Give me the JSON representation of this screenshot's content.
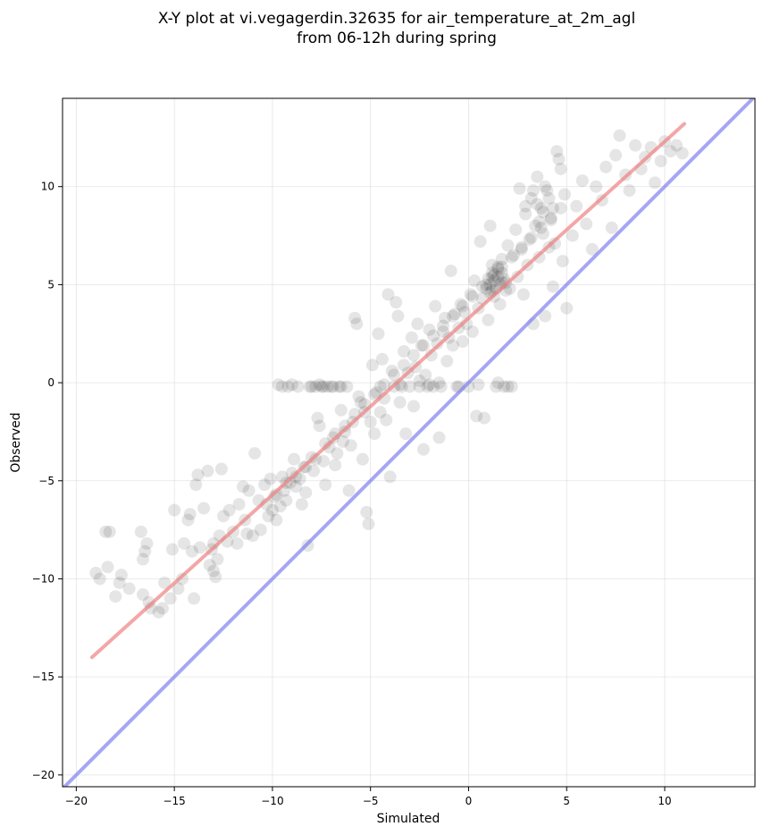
{
  "chart_data": {
    "type": "scatter",
    "title": [
      "X-Y plot at vi.vegagerdin.32635 for air_temperature_at_2m_agl",
      "from 06-12h during spring"
    ],
    "xlabel": "Simulated",
    "ylabel": "Observed",
    "xlim": [
      -20.7,
      14.6
    ],
    "ylim": [
      -20.6,
      14.5
    ],
    "xticks": [
      -20,
      -15,
      -10,
      -5,
      0,
      5,
      10
    ],
    "yticks": [
      -20,
      -15,
      -10,
      -5,
      0,
      5,
      10
    ],
    "xtick_labels": [
      "−20",
      "−15",
      "−10",
      "−5",
      "0",
      "5",
      "10"
    ],
    "ytick_labels": [
      "−20",
      "−15",
      "−10",
      "−5",
      "0",
      "5",
      "10"
    ],
    "grid": true,
    "marker_color": "#000000",
    "marker_alpha": 0.1,
    "series": [
      {
        "type": "scatter",
        "points": [
          [
            -19.0,
            -9.7
          ],
          [
            -18.8,
            -10.0
          ],
          [
            -18.3,
            -7.6
          ],
          [
            -18.5,
            -7.6
          ],
          [
            -18.4,
            -9.4
          ],
          [
            -18.0,
            -10.9
          ],
          [
            -17.8,
            -10.2
          ],
          [
            -17.7,
            -9.8
          ],
          [
            -17.3,
            -10.5
          ],
          [
            -16.7,
            -7.6
          ],
          [
            -16.6,
            -9.0
          ],
          [
            -16.5,
            -8.6
          ],
          [
            -16.4,
            -8.2
          ],
          [
            -16.6,
            -10.8
          ],
          [
            -16.2,
            -11.5
          ],
          [
            -16.3,
            -11.2
          ],
          [
            -15.8,
            -11.7
          ],
          [
            -15.6,
            -11.5
          ],
          [
            -15.5,
            -10.2
          ],
          [
            -15.2,
            -11.0
          ],
          [
            -15.0,
            -6.5
          ],
          [
            -15.1,
            -8.5
          ],
          [
            -14.8,
            -10.5
          ],
          [
            -14.6,
            -10.0
          ],
          [
            -14.5,
            -8.2
          ],
          [
            -14.3,
            -7.0
          ],
          [
            -14.2,
            -6.7
          ],
          [
            -14.1,
            -8.6
          ],
          [
            -14.0,
            -11.0
          ],
          [
            -13.9,
            -5.2
          ],
          [
            -13.8,
            -4.7
          ],
          [
            -13.7,
            -8.4
          ],
          [
            -13.5,
            -6.4
          ],
          [
            -13.3,
            -4.5
          ],
          [
            -13.2,
            -9.3
          ],
          [
            -13.1,
            -8.5
          ],
          [
            -13.0,
            -8.2
          ],
          [
            -13.0,
            -9.6
          ],
          [
            -12.9,
            -9.9
          ],
          [
            -12.8,
            -9.0
          ],
          [
            -12.7,
            -7.8
          ],
          [
            -12.6,
            -4.4
          ],
          [
            -12.5,
            -6.8
          ],
          [
            -12.3,
            -8.1
          ],
          [
            -12.2,
            -6.5
          ],
          [
            -12.0,
            -7.6
          ],
          [
            -11.8,
            -8.2
          ],
          [
            -11.7,
            -6.2
          ],
          [
            -11.5,
            -5.3
          ],
          [
            -11.4,
            -7.0
          ],
          [
            -11.2,
            -5.5
          ],
          [
            -11.0,
            -7.8
          ],
          [
            -10.9,
            -3.6
          ],
          [
            -10.7,
            -6.0
          ],
          [
            -10.6,
            -7.5
          ],
          [
            -10.4,
            -5.2
          ],
          [
            -10.2,
            -6.8
          ],
          [
            -10.1,
            -4.9
          ],
          [
            -10.0,
            -6.5
          ],
          [
            -9.9,
            -5.8
          ],
          [
            -9.8,
            -7.0
          ],
          [
            -9.7,
            -0.1
          ],
          [
            -9.6,
            -6.3
          ],
          [
            -9.5,
            -4.8
          ],
          [
            -9.4,
            -5.5
          ],
          [
            -9.3,
            -6.0
          ],
          [
            -9.2,
            -0.2
          ],
          [
            -9.1,
            -5.1
          ],
          [
            -9.0,
            -4.6
          ],
          [
            -8.9,
            -3.9
          ],
          [
            -8.8,
            -5.3
          ],
          [
            -8.7,
            -0.2
          ],
          [
            -8.6,
            -4.9
          ],
          [
            -8.5,
            -6.2
          ],
          [
            -8.4,
            -4.3
          ],
          [
            -8.3,
            -5.6
          ],
          [
            -8.2,
            -8.3
          ],
          [
            -8.1,
            -0.2
          ],
          [
            -8.0,
            -3.8
          ],
          [
            -7.9,
            -4.5
          ],
          [
            -7.8,
            -0.2
          ],
          [
            -7.7,
            -1.8
          ],
          [
            -7.6,
            -2.2
          ],
          [
            -7.5,
            -0.2
          ],
          [
            -7.4,
            -4.0
          ],
          [
            -7.3,
            -5.2
          ],
          [
            -7.2,
            -0.2
          ],
          [
            -7.1,
            -3.3
          ],
          [
            -7.0,
            -0.2
          ],
          [
            -6.9,
            -2.8
          ],
          [
            -6.8,
            -4.2
          ],
          [
            -6.7,
            -3.6
          ],
          [
            -6.6,
            -0.2
          ],
          [
            -6.5,
            -1.4
          ],
          [
            -6.4,
            -3.0
          ],
          [
            -6.3,
            -2.5
          ],
          [
            -6.2,
            -0.2
          ],
          [
            -6.1,
            -5.5
          ],
          [
            -6.0,
            -3.2
          ],
          [
            -5.9,
            -2.0
          ],
          [
            -5.8,
            3.3
          ],
          [
            -5.7,
            3.0
          ],
          [
            -5.6,
            -0.7
          ],
          [
            -5.5,
            -1.0
          ],
          [
            -5.4,
            -3.9
          ],
          [
            -5.3,
            -1.5
          ],
          [
            -5.2,
            -6.6
          ],
          [
            -5.1,
            -7.2
          ],
          [
            -5.0,
            -2.0
          ],
          [
            -4.9,
            0.9
          ],
          [
            -4.8,
            -2.6
          ],
          [
            -4.7,
            -0.5
          ],
          [
            -4.6,
            2.5
          ],
          [
            -4.5,
            -1.5
          ],
          [
            -4.4,
            1.2
          ],
          [
            -4.3,
            -0.8
          ],
          [
            -4.2,
            -1.9
          ],
          [
            -4.1,
            4.5
          ],
          [
            -4.0,
            -4.8
          ],
          [
            -3.9,
            0.6
          ],
          [
            -3.8,
            -0.2
          ],
          [
            -3.7,
            4.1
          ],
          [
            -3.6,
            3.4
          ],
          [
            -3.5,
            -1.0
          ],
          [
            -3.4,
            -0.2
          ],
          [
            -3.3,
            1.6
          ],
          [
            -3.2,
            -2.6
          ],
          [
            -3.1,
            0.5
          ],
          [
            -3.0,
            -0.2
          ],
          [
            -2.9,
            2.3
          ],
          [
            -2.8,
            -1.2
          ],
          [
            -2.7,
            0.8
          ],
          [
            -2.6,
            3.0
          ],
          [
            -2.5,
            -0.2
          ],
          [
            -2.4,
            1.9
          ],
          [
            -2.3,
            -3.4
          ],
          [
            -2.2,
            0.4
          ],
          [
            -2.1,
            -0.2
          ],
          [
            -2.0,
            2.7
          ],
          [
            -1.9,
            1.4
          ],
          [
            -1.8,
            -0.2
          ],
          [
            -1.7,
            3.9
          ],
          [
            -1.6,
            2.0
          ],
          [
            -1.5,
            -2.8
          ],
          [
            -1.4,
            -0.2
          ],
          [
            -1.3,
            2.6
          ],
          [
            -1.2,
            3.3
          ],
          [
            -1.1,
            1.1
          ],
          [
            -1.0,
            2.3
          ],
          [
            -0.9,
            5.7
          ],
          [
            -0.8,
            1.9
          ],
          [
            -0.7,
            3.5
          ],
          [
            -0.6,
            -0.2
          ],
          [
            -0.5,
            2.8
          ],
          [
            -0.4,
            4.0
          ],
          [
            -0.3,
            2.1
          ],
          [
            -0.2,
            3.6
          ],
          [
            -0.1,
            3.0
          ],
          [
            0.0,
            -0.2
          ],
          [
            0.1,
            4.5
          ],
          [
            0.2,
            2.6
          ],
          [
            0.3,
            5.2
          ],
          [
            0.4,
            -1.7
          ],
          [
            0.5,
            3.8
          ],
          [
            0.6,
            7.2
          ],
          [
            0.7,
            4.3
          ],
          [
            0.8,
            -1.8
          ],
          [
            0.9,
            5.0
          ],
          [
            1.0,
            3.2
          ],
          [
            1.1,
            8.0
          ],
          [
            1.2,
            4.7
          ],
          [
            1.3,
            5.5
          ],
          [
            1.4,
            -0.2
          ],
          [
            1.5,
            5.9
          ],
          [
            1.6,
            4.0
          ],
          [
            1.7,
            6.3
          ],
          [
            1.8,
            -0.2
          ],
          [
            1.9,
            5.1
          ],
          [
            2.0,
            7.0
          ],
          [
            2.1,
            4.8
          ],
          [
            2.2,
            -0.2
          ],
          [
            2.3,
            6.5
          ],
          [
            2.4,
            7.8
          ],
          [
            2.5,
            5.4
          ],
          [
            2.6,
            9.9
          ],
          [
            2.7,
            6.8
          ],
          [
            2.8,
            4.5
          ],
          [
            2.9,
            8.6
          ],
          [
            3.0,
            6.0
          ],
          [
            3.1,
            7.3
          ],
          [
            3.2,
            9.4
          ],
          [
            3.3,
            3.0
          ],
          [
            3.4,
            8.0
          ],
          [
            3.5,
            10.5
          ],
          [
            3.6,
            6.4
          ],
          [
            3.7,
            8.9
          ],
          [
            3.8,
            7.6
          ],
          [
            3.9,
            3.4
          ],
          [
            4.0,
            9.8
          ],
          [
            4.1,
            6.9
          ],
          [
            4.2,
            8.3
          ],
          [
            4.3,
            4.9
          ],
          [
            4.4,
            7.1
          ],
          [
            4.5,
            11.8
          ],
          [
            4.6,
            11.4
          ],
          [
            4.7,
            10.9
          ],
          [
            4.8,
            6.2
          ],
          [
            4.9,
            9.6
          ],
          [
            5.0,
            3.8
          ],
          [
            5.3,
            7.5
          ],
          [
            5.5,
            9.0
          ],
          [
            5.8,
            10.3
          ],
          [
            6.0,
            8.1
          ],
          [
            6.3,
            6.8
          ],
          [
            6.5,
            10.0
          ],
          [
            6.8,
            9.3
          ],
          [
            7.0,
            11.0
          ],
          [
            7.3,
            7.9
          ],
          [
            7.5,
            11.6
          ],
          [
            7.7,
            12.6
          ],
          [
            8.0,
            10.6
          ],
          [
            8.2,
            9.8
          ],
          [
            8.5,
            12.1
          ],
          [
            8.8,
            10.9
          ],
          [
            9.0,
            11.5
          ],
          [
            9.3,
            12.0
          ],
          [
            9.5,
            10.2
          ],
          [
            9.8,
            11.3
          ],
          [
            10.0,
            12.3
          ],
          [
            10.3,
            11.8
          ],
          [
            10.6,
            12.1
          ],
          [
            10.9,
            11.7
          ],
          [
            -11.3,
            -7.7
          ],
          [
            -10.3,
            -6.2
          ],
          [
            -9.8,
            -5.7
          ],
          [
            -9.3,
            -5.1
          ],
          [
            -8.8,
            -4.8
          ],
          [
            -8.3,
            -4.3
          ],
          [
            -7.8,
            -3.9
          ],
          [
            -7.3,
            -3.1
          ],
          [
            -6.8,
            -2.6
          ],
          [
            -6.3,
            -2.2
          ],
          [
            -5.8,
            -1.6
          ],
          [
            -5.3,
            -1.1
          ],
          [
            -4.8,
            -0.6
          ],
          [
            -4.3,
            -0.1
          ],
          [
            -3.8,
            0.4
          ],
          [
            -3.3,
            0.9
          ],
          [
            -2.8,
            1.4
          ],
          [
            -2.3,
            1.9
          ],
          [
            -1.8,
            2.4
          ],
          [
            -1.3,
            2.9
          ],
          [
            -0.8,
            3.4
          ],
          [
            -0.3,
            3.9
          ],
          [
            0.2,
            4.4
          ],
          [
            0.7,
            4.9
          ],
          [
            1.2,
            5.4
          ],
          [
            1.7,
            5.9
          ],
          [
            2.2,
            6.4
          ],
          [
            2.7,
            6.9
          ],
          [
            3.2,
            7.4
          ],
          [
            3.7,
            7.9
          ],
          [
            4.2,
            8.4
          ],
          [
            4.7,
            8.9
          ],
          [
            0.9,
            4.8
          ],
          [
            1.1,
            5.0
          ],
          [
            1.3,
            5.2
          ],
          [
            1.5,
            5.4
          ],
          [
            1.7,
            5.6
          ],
          [
            1.0,
            5.3
          ],
          [
            1.2,
            5.6
          ],
          [
            1.4,
            4.8
          ],
          [
            1.6,
            5.0
          ],
          [
            1.8,
            5.3
          ],
          [
            1.1,
            4.6
          ],
          [
            1.3,
            4.4
          ],
          [
            1.5,
            5.8
          ],
          [
            1.7,
            5.1
          ],
          [
            1.9,
            4.7
          ],
          [
            1.2,
            6.0
          ],
          [
            -3.5,
            -0.1
          ],
          [
            -2.5,
            0.1
          ],
          [
            -1.5,
            0.0
          ],
          [
            -0.5,
            -0.2
          ],
          [
            0.5,
            -0.1
          ],
          [
            1.5,
            0.0
          ],
          [
            2.0,
            -0.2
          ],
          [
            -4.5,
            -0.2
          ],
          [
            -7.6,
            -0.1
          ],
          [
            -8.0,
            -0.2
          ],
          [
            -7.4,
            -0.2
          ],
          [
            -6.9,
            -0.2
          ],
          [
            -6.5,
            -0.2
          ],
          [
            -9.5,
            -0.2
          ],
          [
            -9.0,
            -0.1
          ],
          [
            -2.0,
            -0.1
          ],
          [
            3.5,
            9.1
          ],
          [
            3.8,
            8.7
          ],
          [
            4.1,
            9.4
          ],
          [
            3.3,
            9.8
          ],
          [
            3.6,
            8.2
          ],
          [
            2.9,
            9.0
          ],
          [
            3.9,
            10.0
          ],
          [
            4.3,
            8.9
          ]
        ]
      }
    ],
    "lines": [
      {
        "name": "fit",
        "color": "#f08080",
        "x": [
          -19.2,
          11.0
        ],
        "y": [
          -14.0,
          13.2
        ]
      },
      {
        "name": "identity",
        "color": "#8080f0",
        "x": [
          -20.7,
          14.6
        ],
        "y": [
          -20.7,
          14.6
        ]
      }
    ]
  }
}
